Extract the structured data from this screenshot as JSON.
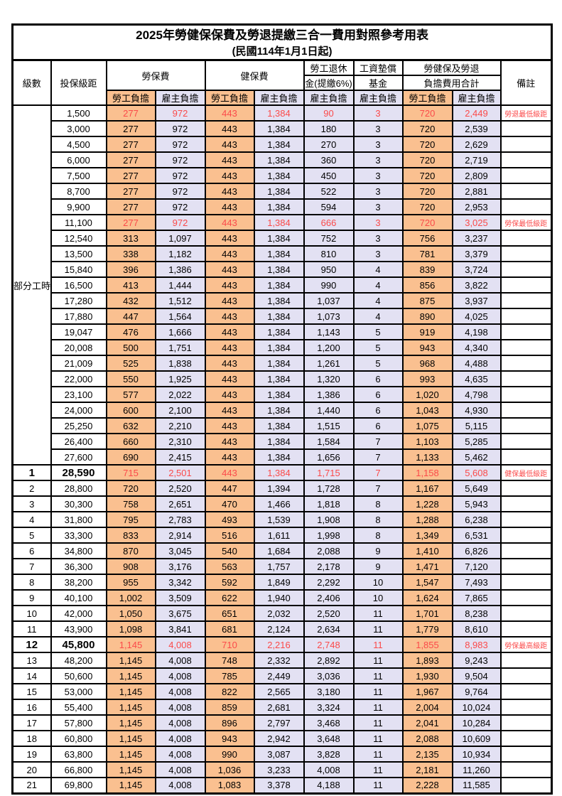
{
  "title": "2025年勞健保保費及勞退提繳三合一費用對照參考用表",
  "subtitle": "(民國114年1月1日起)",
  "header": {
    "level": "級數",
    "bracket": "投保級距",
    "labor_insurance": "勞保費",
    "health_insurance": "健保費",
    "pension_line1": "勞工退休",
    "pension_line2": "金(提繳6%)",
    "wage_fund_line1": "工資墊償",
    "wage_fund_line2": "基金",
    "total_line1": "勞健保及勞退",
    "total_line2": "負擔費用合計",
    "remark": "備註",
    "employee": "勞工負擔",
    "employer": "雇主負擔"
  },
  "colors": {
    "employee_bg": "#FAC090",
    "employer_bg": "#E3E1F3",
    "highlight_text": "#FB4A4A",
    "border": "#000000"
  },
  "part_time": {
    "label": "部分工時",
    "rows": [
      {
        "bracket": "1,500",
        "values": [
          "277",
          "972",
          "443",
          "1,384",
          "90",
          "3",
          "720",
          "2,449"
        ],
        "remark": "勞退最低級距",
        "red": true
      },
      {
        "bracket": "3,000",
        "values": [
          "277",
          "972",
          "443",
          "1,384",
          "180",
          "3",
          "720",
          "2,539"
        ],
        "remark": ""
      },
      {
        "bracket": "4,500",
        "values": [
          "277",
          "972",
          "443",
          "1,384",
          "270",
          "3",
          "720",
          "2,629"
        ],
        "remark": ""
      },
      {
        "bracket": "6,000",
        "values": [
          "277",
          "972",
          "443",
          "1,384",
          "360",
          "3",
          "720",
          "2,719"
        ],
        "remark": ""
      },
      {
        "bracket": "7,500",
        "values": [
          "277",
          "972",
          "443",
          "1,384",
          "450",
          "3",
          "720",
          "2,809"
        ],
        "remark": ""
      },
      {
        "bracket": "8,700",
        "values": [
          "277",
          "972",
          "443",
          "1,384",
          "522",
          "3",
          "720",
          "2,881"
        ],
        "remark": ""
      },
      {
        "bracket": "9,900",
        "values": [
          "277",
          "972",
          "443",
          "1,384",
          "594",
          "3",
          "720",
          "2,953"
        ],
        "remark": ""
      },
      {
        "bracket": "11,100",
        "values": [
          "277",
          "972",
          "443",
          "1,384",
          "666",
          "3",
          "720",
          "3,025"
        ],
        "remark": "勞保最低級距",
        "red": true
      },
      {
        "bracket": "12,540",
        "values": [
          "313",
          "1,097",
          "443",
          "1,384",
          "752",
          "3",
          "756",
          "3,237"
        ],
        "remark": ""
      },
      {
        "bracket": "13,500",
        "values": [
          "338",
          "1,182",
          "443",
          "1,384",
          "810",
          "3",
          "781",
          "3,379"
        ],
        "remark": ""
      },
      {
        "bracket": "15,840",
        "values": [
          "396",
          "1,386",
          "443",
          "1,384",
          "950",
          "4",
          "839",
          "3,724"
        ],
        "remark": ""
      },
      {
        "bracket": "16,500",
        "values": [
          "413",
          "1,444",
          "443",
          "1,384",
          "990",
          "4",
          "856",
          "3,822"
        ],
        "remark": ""
      },
      {
        "bracket": "17,280",
        "values": [
          "432",
          "1,512",
          "443",
          "1,384",
          "1,037",
          "4",
          "875",
          "3,937"
        ],
        "remark": ""
      },
      {
        "bracket": "17,880",
        "values": [
          "447",
          "1,564",
          "443",
          "1,384",
          "1,073",
          "4",
          "890",
          "4,025"
        ],
        "remark": ""
      },
      {
        "bracket": "19,047",
        "values": [
          "476",
          "1,666",
          "443",
          "1,384",
          "1,143",
          "5",
          "919",
          "4,198"
        ],
        "remark": ""
      },
      {
        "bracket": "20,008",
        "values": [
          "500",
          "1,751",
          "443",
          "1,384",
          "1,200",
          "5",
          "943",
          "4,340"
        ],
        "remark": ""
      },
      {
        "bracket": "21,009",
        "values": [
          "525",
          "1,838",
          "443",
          "1,384",
          "1,261",
          "5",
          "968",
          "4,488"
        ],
        "remark": ""
      },
      {
        "bracket": "22,000",
        "values": [
          "550",
          "1,925",
          "443",
          "1,384",
          "1,320",
          "6",
          "993",
          "4,635"
        ],
        "remark": ""
      },
      {
        "bracket": "23,100",
        "values": [
          "577",
          "2,022",
          "443",
          "1,384",
          "1,386",
          "6",
          "1,020",
          "4,798"
        ],
        "remark": ""
      },
      {
        "bracket": "24,000",
        "values": [
          "600",
          "2,100",
          "443",
          "1,384",
          "1,440",
          "6",
          "1,043",
          "4,930"
        ],
        "remark": ""
      },
      {
        "bracket": "25,250",
        "values": [
          "632",
          "2,210",
          "443",
          "1,384",
          "1,515",
          "6",
          "1,075",
          "5,115"
        ],
        "remark": ""
      },
      {
        "bracket": "26,400",
        "values": [
          "660",
          "2,310",
          "443",
          "1,384",
          "1,584",
          "7",
          "1,103",
          "5,285"
        ],
        "remark": ""
      },
      {
        "bracket": "27,600",
        "values": [
          "690",
          "2,415",
          "443",
          "1,384",
          "1,656",
          "7",
          "1,133",
          "5,462"
        ],
        "remark": ""
      }
    ]
  },
  "levels": {
    "rows": [
      {
        "level": "1",
        "bracket": "28,590",
        "values": [
          "715",
          "2,501",
          "443",
          "1,384",
          "1,715",
          "7",
          "1,158",
          "5,608"
        ],
        "remark": "健保最低級距",
        "red": true,
        "big": true
      },
      {
        "level": "2",
        "bracket": "28,800",
        "values": [
          "720",
          "2,520",
          "447",
          "1,394",
          "1,728",
          "7",
          "1,167",
          "5,649"
        ],
        "remark": ""
      },
      {
        "level": "3",
        "bracket": "30,300",
        "values": [
          "758",
          "2,651",
          "470",
          "1,466",
          "1,818",
          "8",
          "1,228",
          "5,943"
        ],
        "remark": ""
      },
      {
        "level": "4",
        "bracket": "31,800",
        "values": [
          "795",
          "2,783",
          "493",
          "1,539",
          "1,908",
          "8",
          "1,288",
          "6,238"
        ],
        "remark": ""
      },
      {
        "level": "5",
        "bracket": "33,300",
        "values": [
          "833",
          "2,914",
          "516",
          "1,611",
          "1,998",
          "8",
          "1,349",
          "6,531"
        ],
        "remark": ""
      },
      {
        "level": "6",
        "bracket": "34,800",
        "values": [
          "870",
          "3,045",
          "540",
          "1,684",
          "2,088",
          "9",
          "1,410",
          "6,826"
        ],
        "remark": ""
      },
      {
        "level": "7",
        "bracket": "36,300",
        "values": [
          "908",
          "3,176",
          "563",
          "1,757",
          "2,178",
          "9",
          "1,471",
          "7,120"
        ],
        "remark": ""
      },
      {
        "level": "8",
        "bracket": "38,200",
        "values": [
          "955",
          "3,342",
          "592",
          "1,849",
          "2,292",
          "10",
          "1,547",
          "7,493"
        ],
        "remark": ""
      },
      {
        "level": "9",
        "bracket": "40,100",
        "values": [
          "1,002",
          "3,509",
          "622",
          "1,940",
          "2,406",
          "10",
          "1,624",
          "7,865"
        ],
        "remark": ""
      },
      {
        "level": "10",
        "bracket": "42,000",
        "values": [
          "1,050",
          "3,675",
          "651",
          "2,032",
          "2,520",
          "11",
          "1,701",
          "8,238"
        ],
        "remark": ""
      },
      {
        "level": "11",
        "bracket": "43,900",
        "values": [
          "1,098",
          "3,841",
          "681",
          "2,124",
          "2,634",
          "11",
          "1,779",
          "8,610"
        ],
        "remark": ""
      },
      {
        "level": "12",
        "bracket": "45,800",
        "values": [
          "1,145",
          "4,008",
          "710",
          "2,216",
          "2,748",
          "11",
          "1,855",
          "8,983"
        ],
        "remark": "勞保最高級距",
        "red": true,
        "big": true
      },
      {
        "level": "13",
        "bracket": "48,200",
        "values": [
          "1,145",
          "4,008",
          "748",
          "2,332",
          "2,892",
          "11",
          "1,893",
          "9,243"
        ],
        "remark": ""
      },
      {
        "level": "14",
        "bracket": "50,600",
        "values": [
          "1,145",
          "4,008",
          "785",
          "2,449",
          "3,036",
          "11",
          "1,930",
          "9,504"
        ],
        "remark": ""
      },
      {
        "level": "15",
        "bracket": "53,000",
        "values": [
          "1,145",
          "4,008",
          "822",
          "2,565",
          "3,180",
          "11",
          "1,967",
          "9,764"
        ],
        "remark": ""
      },
      {
        "level": "16",
        "bracket": "55,400",
        "values": [
          "1,145",
          "4,008",
          "859",
          "2,681",
          "3,324",
          "11",
          "2,004",
          "10,024"
        ],
        "remark": ""
      },
      {
        "level": "17",
        "bracket": "57,800",
        "values": [
          "1,145",
          "4,008",
          "896",
          "2,797",
          "3,468",
          "11",
          "2,041",
          "10,284"
        ],
        "remark": ""
      },
      {
        "level": "18",
        "bracket": "60,800",
        "values": [
          "1,145",
          "4,008",
          "943",
          "2,942",
          "3,648",
          "11",
          "2,088",
          "10,609"
        ],
        "remark": ""
      },
      {
        "level": "19",
        "bracket": "63,800",
        "values": [
          "1,145",
          "4,008",
          "990",
          "3,087",
          "3,828",
          "11",
          "2,135",
          "10,934"
        ],
        "remark": ""
      },
      {
        "level": "20",
        "bracket": "66,800",
        "values": [
          "1,145",
          "4,008",
          "1,036",
          "3,233",
          "4,008",
          "11",
          "2,181",
          "11,260"
        ],
        "remark": ""
      },
      {
        "level": "21",
        "bracket": "69,800",
        "values": [
          "1,145",
          "4,008",
          "1,083",
          "3,378",
          "4,188",
          "11",
          "2,228",
          "11,585"
        ],
        "remark": ""
      }
    ]
  }
}
